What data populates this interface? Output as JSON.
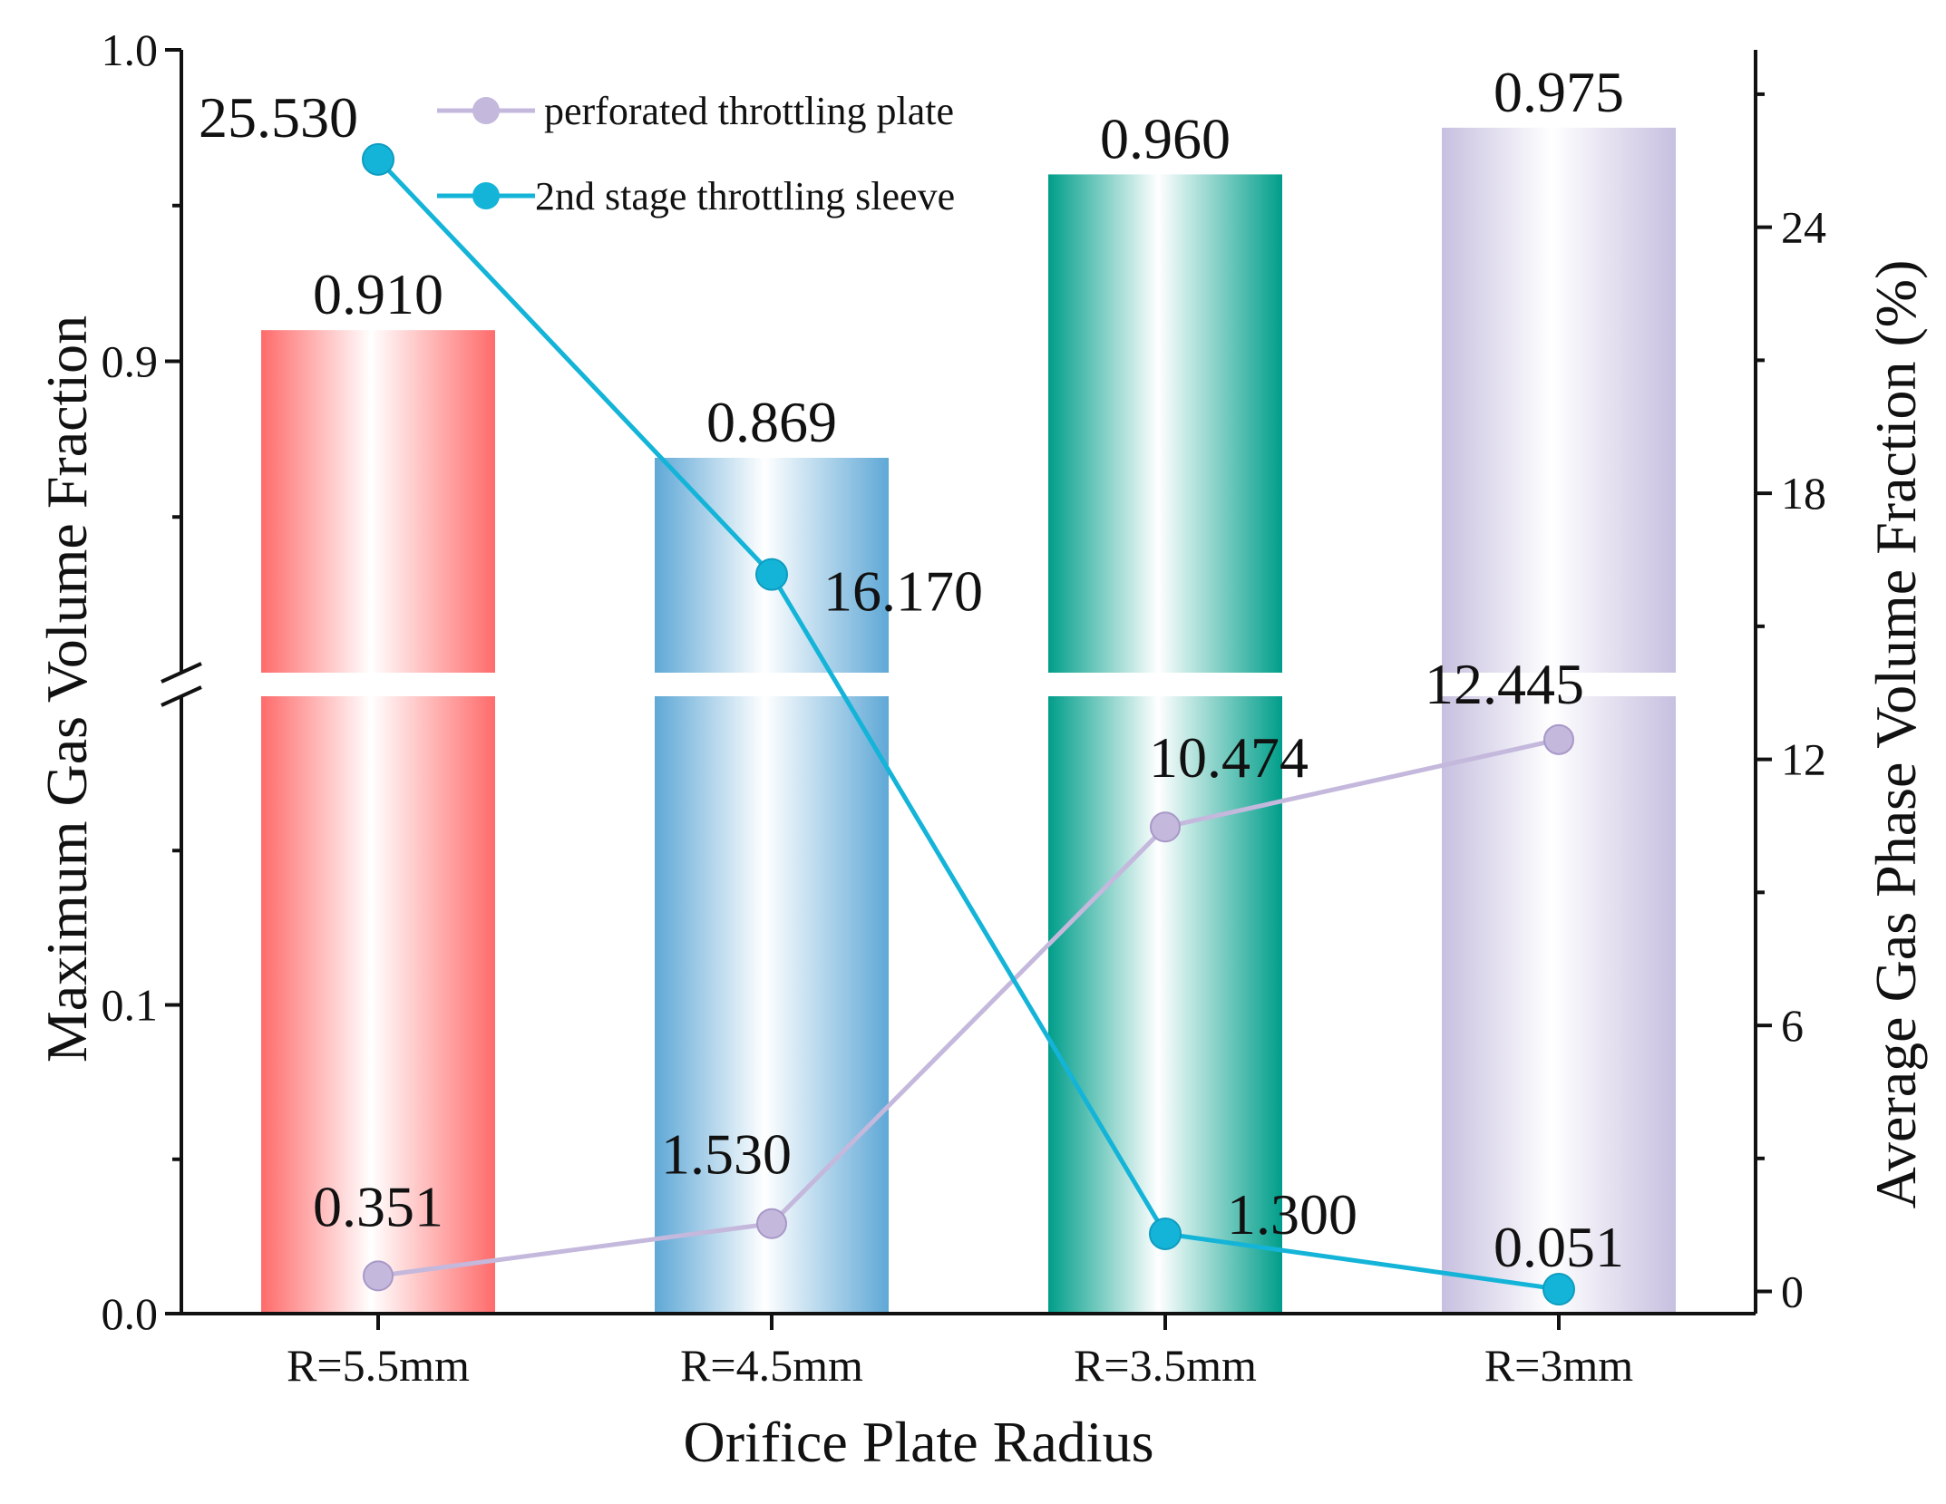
{
  "chart_data": {
    "type": "bar",
    "categories": [
      "R=5.5mm",
      "R=4.5mm",
      "R=3.5mm",
      "R=3mm"
    ],
    "bars": {
      "values": [
        0.91,
        0.869,
        0.96,
        0.975
      ],
      "labels": [
        "0.910",
        "0.869",
        "0.960",
        "0.975"
      ],
      "colors": [
        "#ff6b6b",
        "#5fa8d6",
        "#009e8a",
        "#c7c0e0"
      ]
    },
    "series": [
      {
        "name": "perforated throttling plate",
        "axis": "right",
        "values": [
          0.351,
          1.53,
          10.474,
          12.445
        ],
        "labels": [
          "0.351",
          "1.530",
          "10.474",
          "12.445"
        ],
        "color": "#c4b8dc"
      },
      {
        "name": "2nd stage throttling sleeve",
        "axis": "right",
        "values": [
          25.53,
          16.17,
          1.3,
          0.051
        ],
        "labels": [
          "25.530",
          "16.170",
          "1.300",
          "0.051"
        ],
        "color": "#14b4d8"
      }
    ],
    "xlabel": "Orifice Plate Radius",
    "ylabel_left": "Maximum Gas Volume Fraction",
    "ylabel_right": "Average Gas Phase Volume Fraction (%)",
    "left_axis": {
      "broken": true,
      "lower_segment": [
        0.0,
        0.2
      ],
      "upper_segment": [
        0.8,
        1.0
      ],
      "tick_labels": [
        "0.0",
        "0.1",
        "0.9",
        "1.0"
      ]
    },
    "right_axis": {
      "range": [
        -0.5,
        28
      ],
      "tick_labels": [
        "0",
        "6",
        "12",
        "18",
        "24"
      ]
    },
    "legend_position": "top-left",
    "grid": false
  }
}
